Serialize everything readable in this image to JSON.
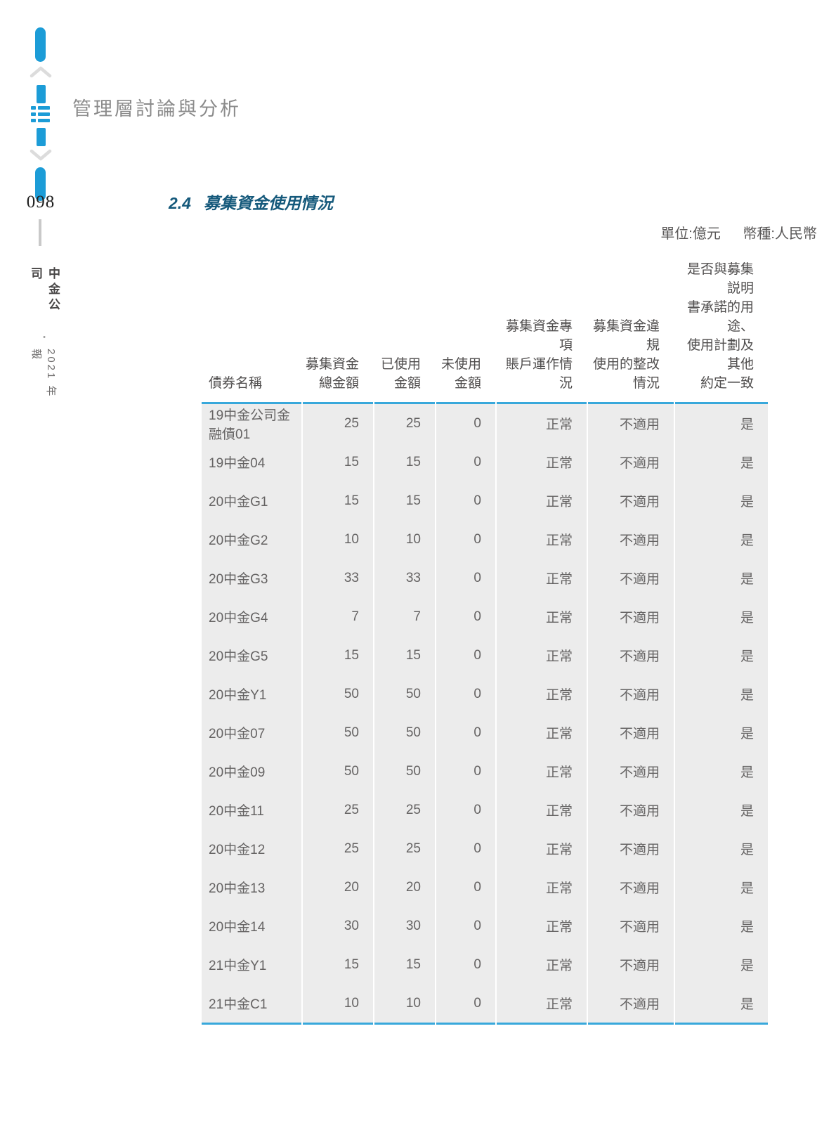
{
  "page": {
    "page_number": "098",
    "brand_name": "中金公司",
    "brand_separator": "•",
    "brand_year": "2021 年報",
    "chapter_title": "管理層討論與分析"
  },
  "section": {
    "number": "2.4",
    "title": "募集資金使用情況",
    "unit_label": "單位:億元",
    "currency_label": "幣種:人民幣"
  },
  "table": {
    "columns": [
      {
        "label": "債券名稱",
        "align": "left"
      },
      {
        "label": "募集資金\n總金額",
        "align": "right"
      },
      {
        "label": "已使用\n金額",
        "align": "right"
      },
      {
        "label": "未使用\n金額",
        "align": "right"
      },
      {
        "label": "募集資金專項\n賬戶運作情況",
        "align": "right"
      },
      {
        "label": "募集資金違規\n使用的整改情況",
        "align": "right"
      },
      {
        "label": "是否與募集説明\n書承諾的用途、\n使用計劃及其他\n約定一致",
        "align": "right"
      }
    ],
    "rows": [
      [
        "19中金公司金融債01",
        "25",
        "25",
        "0",
        "正常",
        "不適用",
        "是"
      ],
      [
        "19中金04",
        "15",
        "15",
        "0",
        "正常",
        "不適用",
        "是"
      ],
      [
        "20中金G1",
        "15",
        "15",
        "0",
        "正常",
        "不適用",
        "是"
      ],
      [
        "20中金G2",
        "10",
        "10",
        "0",
        "正常",
        "不適用",
        "是"
      ],
      [
        "20中金G3",
        "33",
        "33",
        "0",
        "正常",
        "不適用",
        "是"
      ],
      [
        "20中金G4",
        "7",
        "7",
        "0",
        "正常",
        "不適用",
        "是"
      ],
      [
        "20中金G5",
        "15",
        "15",
        "0",
        "正常",
        "不適用",
        "是"
      ],
      [
        "20中金Y1",
        "50",
        "50",
        "0",
        "正常",
        "不適用",
        "是"
      ],
      [
        "20中金07",
        "50",
        "50",
        "0",
        "正常",
        "不適用",
        "是"
      ],
      [
        "20中金09",
        "50",
        "50",
        "0",
        "正常",
        "不適用",
        "是"
      ],
      [
        "20中金11",
        "25",
        "25",
        "0",
        "正常",
        "不適用",
        "是"
      ],
      [
        "20中金12",
        "25",
        "25",
        "0",
        "正常",
        "不適用",
        "是"
      ],
      [
        "20中金13",
        "20",
        "20",
        "0",
        "正常",
        "不適用",
        "是"
      ],
      [
        "20中金14",
        "30",
        "30",
        "0",
        "正常",
        "不適用",
        "是"
      ],
      [
        "21中金Y1",
        "15",
        "15",
        "0",
        "正常",
        "不適用",
        "是"
      ],
      [
        "21中金C1",
        "10",
        "10",
        "0",
        "正常",
        "不適用",
        "是"
      ]
    ]
  },
  "colors": {
    "accent_blue": "#1C9CD7",
    "table_line_blue": "#38A8DB",
    "row_background": "#ECECEC",
    "section_title_blue": "#15597B",
    "chapter_title_gray": "#8B8B8B",
    "body_text_gray": "#656363"
  },
  "icons": {
    "chevron_up": "chevron-up-icon",
    "chevron_down": "chevron-down-icon",
    "list": "list-icon"
  }
}
